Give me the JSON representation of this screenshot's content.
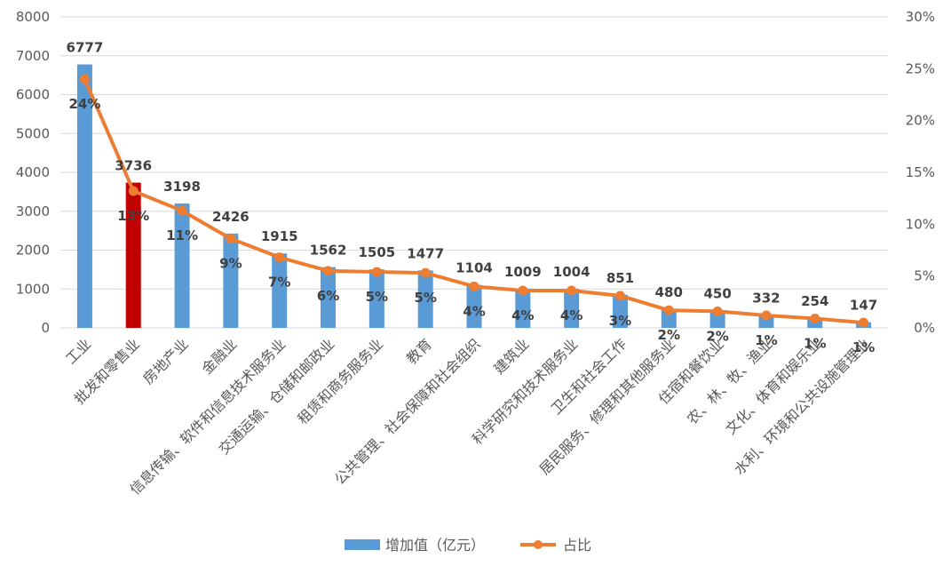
{
  "chart_data": {
    "type": "bar+line",
    "categories": [
      "工业",
      "批发和零售业",
      "房地产业",
      "金融业",
      "信息传输、软件和信息技术服务业",
      "交通运输、仓储和邮政业",
      "租赁和商务服务业",
      "教育",
      "公共管理、社会保障和社会组织",
      "建筑业",
      "科学研究和技术服务业",
      "卫生和社会工作",
      "居民服务、修理和其他服务业",
      "住宿和餐饮业",
      "农、林、牧、渔业",
      "文化、体育和娱乐业",
      "水利、环境和公共设施管理业"
    ],
    "series": [
      {
        "name": "增加值（亿元）",
        "type": "bar",
        "axis": "left",
        "color": "#5B9BD5",
        "values": [
          6777,
          3736,
          3198,
          2426,
          1915,
          1562,
          1505,
          1477,
          1104,
          1009,
          1004,
          851,
          480,
          450,
          332,
          254,
          147
        ],
        "labels": [
          "6777",
          "3736",
          "3198",
          "2426",
          "1915",
          "1562",
          "1505",
          "1477",
          "1104",
          "1009",
          "1004",
          "851",
          "480",
          "450",
          "332",
          "254",
          "147"
        ]
      },
      {
        "name": "占比",
        "type": "line",
        "axis": "right",
        "color": "#ED7D31",
        "values": [
          0.24,
          0.132,
          0.113,
          0.086,
          0.068,
          0.055,
          0.054,
          0.053,
          0.04,
          0.036,
          0.036,
          0.031,
          0.017,
          0.016,
          0.012,
          0.009,
          0.005
        ],
        "labels": [
          "24%",
          "13%",
          "11%",
          "9%",
          "7%",
          "6%",
          "5%",
          "5%",
          "4%",
          "4%",
          "4%",
          "3%",
          "2%",
          "2%",
          "1%",
          "1%",
          "1%"
        ]
      }
    ],
    "highlight_index": 1,
    "highlight_color": "#C00000",
    "y_left": {
      "min": 0,
      "max": 8000,
      "ticks": [
        "0",
        "1000",
        "2000",
        "3000",
        "4000",
        "5000",
        "6000",
        "7000",
        "8000"
      ]
    },
    "y_right": {
      "min": 0,
      "max": 0.3,
      "ticks": [
        "0%",
        "5%",
        "10%",
        "15%",
        "20%",
        "25%",
        "30%"
      ]
    },
    "grid": true,
    "legend_position": "bottom",
    "gridline_color": "#D9D9D9"
  }
}
